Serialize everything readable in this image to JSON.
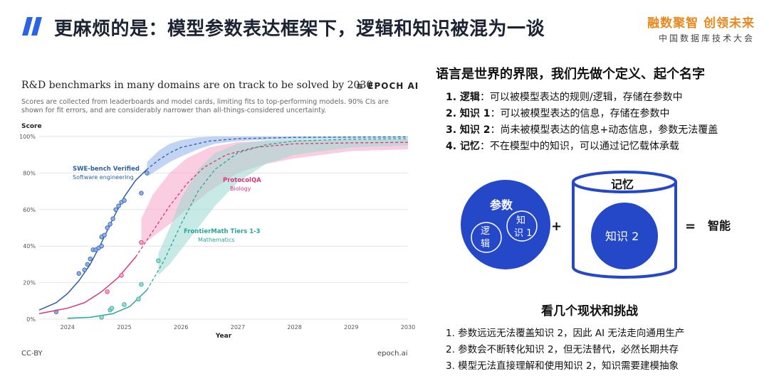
{
  "header": {
    "title": "更麻烦的是：模型参数表达框架下，逻辑和知识被混为一谈",
    "brand_line1": "融数聚智 创领未来",
    "brand_line2": "中国数据库技术大会",
    "accent_color": "#2a63e6",
    "brand_color": "#e8891d"
  },
  "chart": {
    "title": "R&D benchmarks in many domains are on track to be solved by 2030",
    "logo_text": "EPOCH AI",
    "subtitle": "Scores are collected from leaderboards and model cards, limiting fits to top-performing models. 90% CIs are shown for fit errors, and are considerably narrower than all-things-considered uncertainty.",
    "license": "CC-BY",
    "source": "epoch.ai"
  },
  "chart_data": {
    "type": "line",
    "ylabel": "Score",
    "xlabel": "Year",
    "x_ticks": [
      "2024",
      "2025",
      "2026",
      "2027",
      "2028",
      "2029",
      "2030"
    ],
    "y_ticks": [
      "0%",
      "20%",
      "40%",
      "60%",
      "80%",
      "100%"
    ],
    "xlim": [
      2023.5,
      2030
    ],
    "ylim": [
      0,
      100
    ],
    "series": [
      {
        "name": "SWE-bench Verified",
        "subtitle": "Software engineering",
        "color": "#2e5fa8",
        "band_color": "#8fb0ea",
        "fit": [
          [
            2023.5,
            5
          ],
          [
            2023.8,
            9
          ],
          [
            2024.0,
            14
          ],
          [
            2024.2,
            21
          ],
          [
            2024.4,
            30
          ],
          [
            2024.6,
            42
          ],
          [
            2024.8,
            55
          ],
          [
            2025.0,
            67
          ],
          [
            2025.2,
            76
          ],
          [
            2025.4,
            82
          ],
          [
            2025.6,
            87
          ],
          [
            2025.8,
            91
          ],
          [
            2026.0,
            94
          ],
          [
            2026.5,
            97.5
          ],
          [
            2027.0,
            98.8
          ],
          [
            2028,
            99.5
          ],
          [
            2030,
            99.8
          ]
        ],
        "band": [
          [
            2025.4,
            78,
            86
          ],
          [
            2025.6,
            82,
            92
          ],
          [
            2025.8,
            86,
            96
          ],
          [
            2026.0,
            89,
            98
          ],
          [
            2026.3,
            93,
            99.5
          ],
          [
            2026.6,
            96,
            100
          ],
          [
            2027,
            97.5,
            100
          ],
          [
            2028,
            99,
            100
          ],
          [
            2030,
            99.5,
            100
          ]
        ],
        "points": [
          [
            2023.8,
            4
          ],
          [
            2024.35,
            30
          ],
          [
            2024.4,
            33
          ],
          [
            2024.45,
            38
          ],
          [
            2024.5,
            38
          ],
          [
            2024.55,
            39
          ],
          [
            2024.6,
            45
          ],
          [
            2024.65,
            46
          ],
          [
            2024.7,
            50
          ],
          [
            2024.75,
            52
          ],
          [
            2024.8,
            55
          ],
          [
            2024.85,
            60
          ],
          [
            2024.9,
            62
          ],
          [
            2024.95,
            64
          ],
          [
            2025.0,
            65
          ],
          [
            2025.3,
            69
          ],
          [
            2025.4,
            80
          ],
          [
            2024.2,
            25
          ],
          [
            2024.3,
            27
          ],
          [
            2024.6,
            40
          ]
        ]
      },
      {
        "name": "ProtocolQA",
        "subtitle": "Biology",
        "color": "#d9357c",
        "band_color": "#f5a6c6",
        "fit": [
          [
            2023.5,
            3
          ],
          [
            2024.0,
            6
          ],
          [
            2024.3,
            9
          ],
          [
            2024.6,
            15
          ],
          [
            2024.9,
            23
          ],
          [
            2025.2,
            34
          ],
          [
            2025.5,
            48
          ],
          [
            2025.8,
            62
          ],
          [
            2026.1,
            74
          ],
          [
            2026.4,
            83
          ],
          [
            2026.8,
            90
          ],
          [
            2027.3,
            94
          ],
          [
            2028,
            96
          ],
          [
            2029,
            96.5
          ],
          [
            2030,
            96.8
          ]
        ],
        "band": [
          [
            2025.3,
            40,
            55
          ],
          [
            2025.5,
            45,
            68
          ],
          [
            2025.8,
            52,
            80
          ],
          [
            2026.1,
            60,
            88
          ],
          [
            2026.5,
            70,
            94
          ],
          [
            2027,
            80,
            97
          ],
          [
            2027.5,
            85,
            97.5
          ],
          [
            2028,
            88,
            98
          ],
          [
            2029,
            92,
            98.2
          ],
          [
            2030,
            93,
            98.5
          ]
        ],
        "points": [
          [
            2024.7,
            15
          ],
          [
            2024.95,
            24
          ],
          [
            2025.3,
            42
          ]
        ]
      },
      {
        "name": "FrontierMath Tiers 1-3",
        "subtitle": "Mathematics",
        "color": "#26a69a",
        "band_color": "#9ad9d2",
        "fit": [
          [
            2024.0,
            0.5
          ],
          [
            2024.4,
            1
          ],
          [
            2024.8,
            3
          ],
          [
            2025.1,
            7
          ],
          [
            2025.4,
            16
          ],
          [
            2025.7,
            32
          ],
          [
            2026.0,
            52
          ],
          [
            2026.3,
            70
          ],
          [
            2026.6,
            82
          ],
          [
            2027.0,
            91
          ],
          [
            2027.5,
            95.5
          ],
          [
            2028,
            97.5
          ],
          [
            2029,
            98.5
          ],
          [
            2030,
            98.8
          ]
        ],
        "band": [
          [
            2025.6,
            24,
            36
          ],
          [
            2025.8,
            30,
            50
          ],
          [
            2026.0,
            38,
            66
          ],
          [
            2026.3,
            50,
            82
          ],
          [
            2026.6,
            62,
            91
          ],
          [
            2027,
            75,
            96
          ],
          [
            2027.5,
            85,
            98
          ],
          [
            2028,
            90,
            99
          ],
          [
            2029,
            94,
            99.3
          ],
          [
            2030,
            95,
            99.5
          ]
        ],
        "points": [
          [
            2024.6,
            1
          ],
          [
            2024.75,
            5
          ],
          [
            2024.78,
            6
          ],
          [
            2025.0,
            8
          ],
          [
            2025.25,
            11
          ],
          [
            2025.3,
            19
          ],
          [
            2025.6,
            32
          ]
        ]
      }
    ]
  },
  "right": {
    "heading": "语言是世界的界限，我们先做个定义、起个名字",
    "definitions": [
      {
        "term": "1. 逻辑",
        "desc": "：可以被模型表达的规则/逻辑，存储在参数中"
      },
      {
        "term": "2. 知识 1",
        "desc": "：可以被模型表达的信息，存储在参数中"
      },
      {
        "term": "3. 知识 2",
        "desc": "：尚未被模型表达的信息+动态信息，参数无法覆盖"
      },
      {
        "term": "4. 记忆",
        "desc": "：不在模型中的知识，可以通过记忆载体承载"
      }
    ],
    "diagram": {
      "params": "参数",
      "logic": "逻辑",
      "knowledge1": "知识 1",
      "plus": "+",
      "memory": "记忆",
      "knowledge2": "知识 2",
      "equals": "=",
      "intelligence": "智能"
    },
    "challenges_title": "看几个现状和挑战",
    "challenges": [
      "1. 参数远远无法覆盖知识 2，因此 AI 无法走向通用生产",
      "2. 参数会不断转化知识 2，但无法替代，必然长期共存",
      "3. 模型无法直接理解和使用知识 2，知识需要建模抽象"
    ]
  }
}
